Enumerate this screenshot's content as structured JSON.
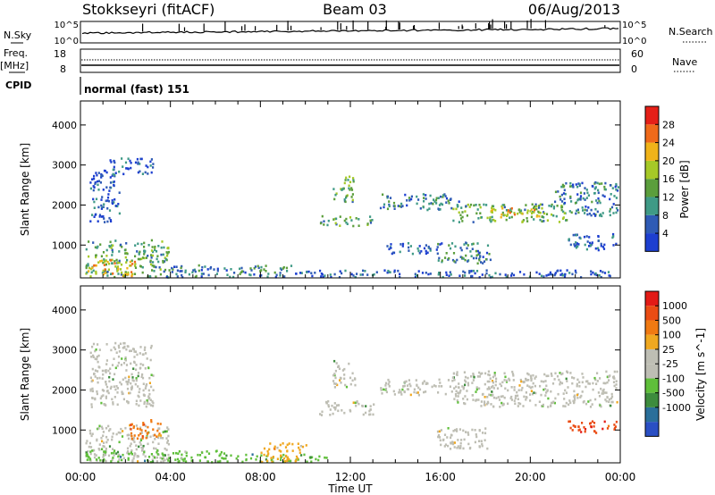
{
  "header": {
    "station": "Stokkseyri (fitACF)",
    "beam": "Beam 03",
    "date": "06/Aug/2013"
  },
  "housekeeping": {
    "nsky_label": "N.Sky",
    "nsky_ticks": [
      "10^5",
      "10^0"
    ],
    "nsearch_label": "N.Search",
    "nsearch_ticks": [
      "10^5",
      "10^0"
    ],
    "freq_label": "Freq.",
    "freq_unit": "[MHz]",
    "freq_ticks": [
      "18",
      "8"
    ],
    "nave_label": "Nave",
    "nave_ticks": [
      "60",
      "0"
    ],
    "cpid_label": "CPID",
    "cpid_value": "normal (fast) 151"
  },
  "colors": {
    "power_scale": [
      "#1d3fd0",
      "#2f5bb5",
      "#3f9a86",
      "#5b9e3c",
      "#a6c927",
      "#f0b319",
      "#ef6a1a",
      "#e52018"
    ],
    "velocity_scale": [
      "#2a4fc4",
      "#2a6f9a",
      "#3d8c3d",
      "#5fbf3a",
      "#bebeb4",
      "#bebeb4",
      "#f0a820",
      "#f07a12",
      "#ea4c14",
      "#e31b16"
    ]
  },
  "chart_data": [
    {
      "type": "heatmap",
      "name": "power-panel",
      "ylabel": "Slant Range [km]",
      "xlabel": "",
      "x_ticks": [
        "00:00",
        "04:00",
        "08:00",
        "12:00",
        "16:00",
        "20:00",
        "00:00"
      ],
      "x_range_hours": [
        0,
        24
      ],
      "y_ticks": [
        "1000",
        "2000",
        "3000",
        "4000"
      ],
      "y_tick_values": [
        1000,
        2000,
        3000,
        4000
      ],
      "ylim": [
        180,
        4600
      ],
      "colorbar": {
        "label": "Power [dB]",
        "ticks": [
          "4",
          "8",
          "12",
          "16",
          "20",
          "24",
          "28"
        ],
        "range": [
          0,
          32
        ]
      },
      "scatter_regions": [
        {
          "t0": 0.2,
          "t1": 3.9,
          "r0": 220,
          "r1": 1150,
          "level": 3
        },
        {
          "t0": 0.3,
          "t1": 2.4,
          "r0": 250,
          "r1": 650,
          "level": 5
        },
        {
          "t0": 3.8,
          "t1": 9.5,
          "r0": 220,
          "r1": 520,
          "level": 2
        },
        {
          "t0": 9.5,
          "t1": 23.9,
          "r0": 220,
          "r1": 400,
          "level": 1
        },
        {
          "t0": 0.4,
          "t1": 1.7,
          "r0": 1600,
          "r1": 2900,
          "level": 1
        },
        {
          "t0": 1.2,
          "t1": 3.2,
          "r0": 2800,
          "r1": 3200,
          "level": 1
        },
        {
          "t0": 10.6,
          "t1": 13.0,
          "r0": 1500,
          "r1": 1750,
          "level": 3
        },
        {
          "t0": 11.2,
          "t1": 12.2,
          "r0": 2100,
          "r1": 2750,
          "level": 3
        },
        {
          "t0": 13.3,
          "t1": 16.8,
          "r0": 1900,
          "r1": 2300,
          "level": 2
        },
        {
          "t0": 16.5,
          "t1": 21.6,
          "r0": 1600,
          "r1": 2050,
          "level": 3
        },
        {
          "t0": 18.0,
          "t1": 20.5,
          "r0": 1700,
          "r1": 1950,
          "level": 5
        },
        {
          "t0": 21.0,
          "t1": 23.9,
          "r0": 1750,
          "r1": 2600,
          "level": 2
        },
        {
          "t0": 15.8,
          "t1": 18.2,
          "r0": 550,
          "r1": 1100,
          "level": 2
        },
        {
          "t0": 21.6,
          "t1": 23.9,
          "r0": 900,
          "r1": 1300,
          "level": 1
        },
        {
          "t0": 13.6,
          "t1": 15.6,
          "r0": 800,
          "r1": 1100,
          "level": 1
        }
      ]
    },
    {
      "type": "heatmap",
      "name": "velocity-panel",
      "ylabel": "Slant Range [km]",
      "xlabel": "Time UT",
      "x_ticks": [
        "00:00",
        "04:00",
        "08:00",
        "12:00",
        "16:00",
        "20:00",
        "00:00"
      ],
      "x_range_hours": [
        0,
        24
      ],
      "y_ticks": [
        "1000",
        "2000",
        "3000",
        "4000"
      ],
      "y_tick_values": [
        1000,
        2000,
        3000,
        4000
      ],
      "ylim": [
        180,
        4600
      ],
      "colorbar": {
        "label": "Velocity [m s^-1]",
        "ticks": [
          "1000",
          "500",
          "100",
          "25",
          "-25",
          "-100",
          "-500",
          "-1000"
        ],
        "range": [
          -1000,
          1000
        ]
      },
      "scatter_regions": [
        {
          "t0": 0.2,
          "t1": 3.9,
          "r0": 220,
          "r1": 1150,
          "level": 4
        },
        {
          "t0": 0.2,
          "t1": 6.5,
          "r0": 220,
          "r1": 520,
          "level": 3
        },
        {
          "t0": 2.2,
          "t1": 3.6,
          "r0": 800,
          "r1": 1300,
          "level": 7
        },
        {
          "t0": 6.5,
          "t1": 11.0,
          "r0": 220,
          "r1": 420,
          "level": 3
        },
        {
          "t0": 0.4,
          "t1": 3.2,
          "r0": 1600,
          "r1": 3200,
          "level": 4
        },
        {
          "t0": 10.6,
          "t1": 13.0,
          "r0": 1400,
          "r1": 1750,
          "level": 4
        },
        {
          "t0": 11.2,
          "t1": 12.2,
          "r0": 2100,
          "r1": 2750,
          "level": 4
        },
        {
          "t0": 13.3,
          "t1": 16.8,
          "r0": 1900,
          "r1": 2300,
          "level": 4
        },
        {
          "t0": 16.5,
          "t1": 23.9,
          "r0": 1600,
          "r1": 2500,
          "level": 4
        },
        {
          "t0": 15.8,
          "t1": 18.2,
          "r0": 550,
          "r1": 1100,
          "level": 4
        },
        {
          "t0": 21.6,
          "t1": 23.9,
          "r0": 950,
          "r1": 1250,
          "level": 8
        },
        {
          "t0": 8.0,
          "t1": 10.0,
          "r0": 220,
          "r1": 700,
          "level": 6
        }
      ]
    }
  ]
}
